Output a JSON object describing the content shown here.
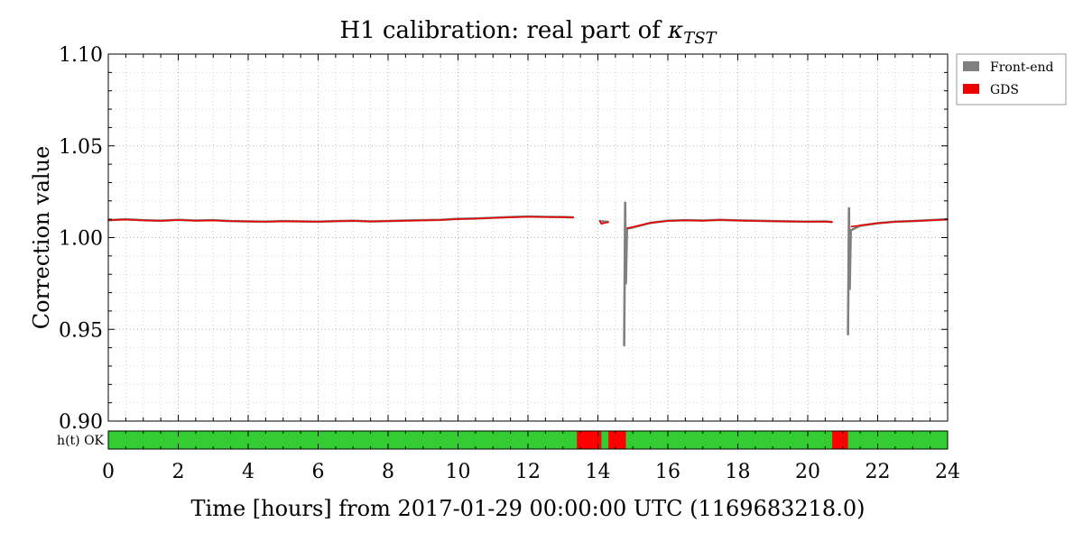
{
  "chart_data": {
    "type": "line",
    "title": "H1 calibration: real part of κTST",
    "title_main": "H1 calibration: real part of ",
    "title_kappa": "κ",
    "title_sub": "TST",
    "xlabel": "Time [hours] from 2017-01-29 00:00:00 UTC (1169683218.0)",
    "ylabel": "Correction value",
    "xlim": [
      0,
      24
    ],
    "ylim": [
      0.9,
      1.1
    ],
    "x_ticks": [
      0,
      2,
      4,
      6,
      8,
      10,
      12,
      14,
      16,
      18,
      20,
      22,
      24
    ],
    "x_tick_labels": [
      "0",
      "2",
      "4",
      "6",
      "8",
      "10",
      "12",
      "14",
      "16",
      "18",
      "20",
      "22",
      "24"
    ],
    "y_ticks": [
      0.9,
      0.95,
      1.0,
      1.05,
      1.1
    ],
    "y_tick_labels": [
      "0.90",
      "0.95",
      "1.00",
      "1.05",
      "1.10"
    ],
    "grid": true,
    "legend_position": "outside-top-right",
    "series": [
      {
        "name": "Front-end",
        "color": "#808080",
        "x": [
          0,
          0.5,
          1,
          1.5,
          2,
          2.5,
          3,
          3.5,
          4,
          4.5,
          5,
          5.5,
          6,
          6.5,
          7,
          7.5,
          8,
          8.5,
          9,
          9.5,
          10,
          10.5,
          11,
          11.5,
          12,
          12.5,
          13,
          13.3,
          null,
          14.05,
          14.3,
          null,
          14.75,
          14.78,
          14.8,
          14.83,
          15.0,
          15.5,
          16,
          16.5,
          17,
          17.5,
          18,
          18.5,
          19,
          19.5,
          20,
          20.5,
          20.7,
          null,
          21.15,
          21.18,
          21.2,
          21.23,
          21.5,
          22,
          22.5,
          23,
          23.5,
          24
        ],
        "y": [
          1.0095,
          1.01,
          1.0095,
          1.0092,
          1.0097,
          1.0093,
          1.0095,
          1.009,
          1.0088,
          1.0087,
          1.009,
          1.0088,
          1.0087,
          1.009,
          1.0092,
          1.0088,
          1.009,
          1.0093,
          1.0095,
          1.0097,
          1.0102,
          1.0104,
          1.0108,
          1.0112,
          1.0115,
          1.0113,
          1.0112,
          1.011,
          null,
          1.009,
          1.0085,
          null,
          0.941,
          1.019,
          0.975,
          1.005,
          1.0055,
          1.008,
          1.0092,
          1.0095,
          1.0093,
          1.0097,
          1.0094,
          1.0092,
          1.009,
          1.0088,
          1.0087,
          1.0088,
          1.0085,
          null,
          0.947,
          1.016,
          0.972,
          1.004,
          1.0065,
          1.0078,
          1.0087,
          1.009,
          1.0095,
          1.01
        ]
      },
      {
        "name": "GDS",
        "color": "#ee0000",
        "x": [
          0,
          0.5,
          1,
          1.5,
          2,
          2.5,
          3,
          3.5,
          4,
          4.5,
          5,
          5.5,
          6,
          6.5,
          7,
          7.5,
          8,
          8.5,
          9,
          9.5,
          10,
          10.5,
          11,
          11.5,
          12,
          12.5,
          13,
          13.3,
          null,
          14.05,
          14.1,
          14.3,
          null,
          14.85,
          15.0,
          15.5,
          16,
          16.5,
          17,
          17.5,
          18,
          18.5,
          19,
          19.5,
          20,
          20.5,
          20.7,
          null,
          21.25,
          21.5,
          22,
          22.5,
          23,
          23.5,
          24
        ],
        "y": [
          1.0095,
          1.0098,
          1.0094,
          1.0092,
          1.0096,
          1.0092,
          1.0094,
          1.009,
          1.0088,
          1.0087,
          1.0089,
          1.0088,
          1.0087,
          1.0089,
          1.0091,
          1.0088,
          1.009,
          1.0092,
          1.0094,
          1.0096,
          1.0101,
          1.0103,
          1.0107,
          1.011,
          1.0113,
          1.0112,
          1.0111,
          1.011,
          null,
          1.009,
          1.0075,
          1.0085,
          null,
          1.005,
          1.0058,
          1.008,
          1.0091,
          1.0094,
          1.0092,
          1.0096,
          1.0093,
          1.0091,
          1.0089,
          1.0088,
          1.0087,
          1.0087,
          1.0085,
          null,
          1.006,
          1.0066,
          1.0078,
          1.0086,
          1.009,
          1.0094,
          1.0099
        ]
      }
    ],
    "segment_bar": {
      "label": "h(t) OK",
      "ok_color": "#33cc33",
      "bad_color": "#ff0000",
      "bad_intervals": [
        [
          13.4,
          14.1
        ],
        [
          14.3,
          14.8
        ],
        [
          20.7,
          21.15
        ]
      ]
    }
  }
}
